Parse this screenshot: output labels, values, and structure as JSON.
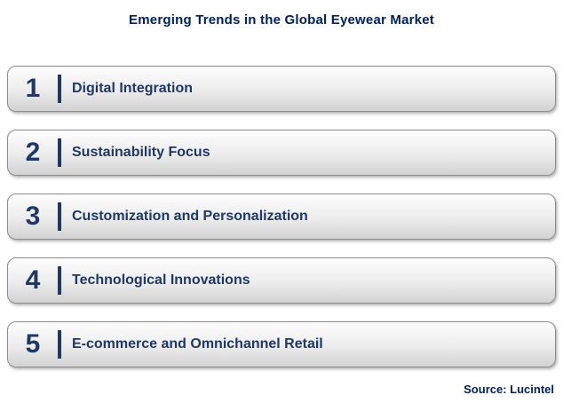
{
  "title": "Emerging Trends in the Global Eyewear Market",
  "trends": [
    {
      "number": "1",
      "label": "Digital Integration"
    },
    {
      "number": "2",
      "label": "Sustainability Focus"
    },
    {
      "number": "3",
      "label": "Customization and Personalization"
    },
    {
      "number": "4",
      "label": "Technological Innovations"
    },
    {
      "number": "5",
      "label": "E-commerce and Omnichannel Retail"
    }
  ],
  "source": "Source: Lucintel",
  "colors": {
    "navy_text": "#1f3864",
    "title_navy": "#002060",
    "row_border": "#8c8c8c",
    "row_gradient_top": "#fdfdfd",
    "row_gradient_bottom": "#d2d2d2"
  }
}
